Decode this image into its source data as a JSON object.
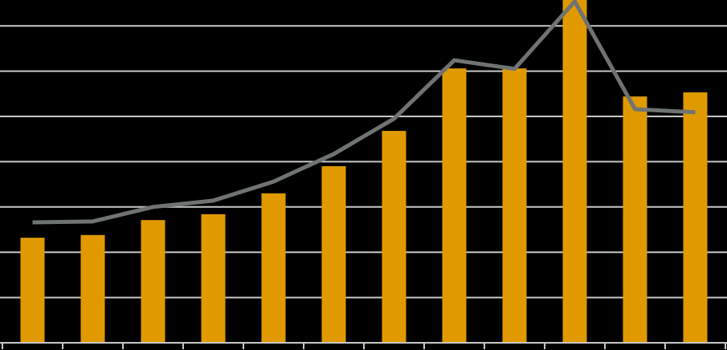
{
  "chart_data": {
    "type": "bar",
    "categories": [
      null,
      null,
      null,
      null,
      null,
      null,
      null,
      null,
      null,
      null,
      null,
      null
    ],
    "series": [
      {
        "type": "bar",
        "color": "#e09a00",
        "values": [
          2.32,
          2.38,
          2.71,
          2.84,
          3.3,
          3.9,
          4.68,
          6.06,
          6.06,
          7.7,
          5.44,
          5.53
        ]
      },
      {
        "type": "line",
        "color": "#6f7372",
        "values": [
          2.66,
          2.68,
          3.0,
          3.14,
          3.56,
          4.17,
          4.95,
          6.24,
          6.05,
          7.54,
          5.16,
          5.09
        ]
      }
    ],
    "ylim": [
      0,
      7.5
    ],
    "yticks": [
      1,
      2,
      3,
      4,
      5,
      6,
      7
    ],
    "grid": true
  }
}
